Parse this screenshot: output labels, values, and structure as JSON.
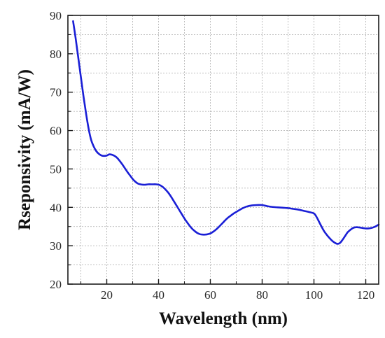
{
  "chart_data": {
    "type": "line",
    "title": "",
    "xlabel": "Wavelength (nm)",
    "ylabel": "Rseponsivity (mA/W)",
    "xlim": [
      5,
      125
    ],
    "ylim": [
      20,
      90
    ],
    "xticks": [
      20,
      40,
      60,
      80,
      100,
      120
    ],
    "yticks": [
      20,
      30,
      40,
      50,
      60,
      70,
      80,
      90
    ],
    "grid": true,
    "legend": "none",
    "line_color": "#1a1fd6",
    "series": [
      {
        "x": [
          7,
          8,
          9,
          10,
          11,
          12,
          13,
          14,
          15,
          16,
          17,
          18,
          19,
          20,
          21,
          22,
          23,
          24,
          25,
          26,
          27,
          28,
          29,
          30,
          31,
          32,
          33,
          34,
          35,
          36,
          37,
          38,
          39,
          40,
          41,
          42,
          43,
          44,
          45,
          46,
          47,
          48,
          49,
          50,
          51,
          52,
          53,
          54,
          55,
          56,
          57,
          58,
          59,
          60,
          61,
          62,
          63,
          64,
          65,
          66,
          67,
          68,
          69,
          70,
          72,
          74,
          76,
          78,
          80,
          82,
          84,
          86,
          88,
          90,
          92,
          94,
          96,
          98,
          100,
          101,
          102,
          103,
          104,
          105,
          106,
          107,
          108,
          109,
          110,
          111,
          112,
          113,
          114,
          115,
          116,
          117,
          118,
          119,
          120,
          121,
          122,
          123,
          124,
          125
        ],
        "y": [
          88.5,
          84,
          79,
          74,
          69,
          64.5,
          60.5,
          57.5,
          55.8,
          54.6,
          53.9,
          53.5,
          53.4,
          53.5,
          53.8,
          53.7,
          53.4,
          52.9,
          52.1,
          51.2,
          50.2,
          49.2,
          48.3,
          47.4,
          46.7,
          46.2,
          46.0,
          45.9,
          45.9,
          46.0,
          46.0,
          46.0,
          46.0,
          45.9,
          45.6,
          45.1,
          44.4,
          43.6,
          42.6,
          41.5,
          40.4,
          39.3,
          38.2,
          37.1,
          36.1,
          35.2,
          34.4,
          33.8,
          33.3,
          33.0,
          32.9,
          32.9,
          33.0,
          33.2,
          33.6,
          34.1,
          34.7,
          35.4,
          36.1,
          36.8,
          37.4,
          37.9,
          38.4,
          38.8,
          39.6,
          40.2,
          40.5,
          40.6,
          40.6,
          40.3,
          40.1,
          40.0,
          39.9,
          39.8,
          39.6,
          39.4,
          39.1,
          38.8,
          38.4,
          37.5,
          36.2,
          34.9,
          33.7,
          32.8,
          32.0,
          31.3,
          30.8,
          30.5,
          30.7,
          31.5,
          32.5,
          33.5,
          34.1,
          34.6,
          34.8,
          34.8,
          34.7,
          34.6,
          34.5,
          34.5,
          34.6,
          34.8,
          35.1,
          35.5
        ]
      }
    ]
  }
}
